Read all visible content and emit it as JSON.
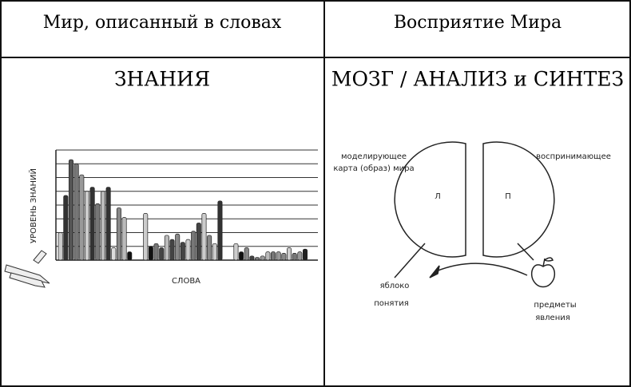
{
  "header": {
    "left": "Мир, описанный в словах",
    "right": "Восприятие Мира"
  },
  "left": {
    "title": "ЗНАНИЯ",
    "chart_data": {
      "type": "bar",
      "ylabel": "УРОВЕНЬ ЗНАНИЙ",
      "xlabel": "СЛОВА",
      "ylim": [
        0,
        8
      ],
      "grid": true,
      "values": [
        2.0,
        4.7,
        7.3,
        7.0,
        6.2,
        5.0,
        5.3,
        4.1,
        5.0,
        5.3,
        0.9,
        3.8,
        3.1,
        0.6,
        null,
        null,
        3.4,
        1.0,
        1.2,
        0.9,
        1.8,
        1.5,
        1.9,
        1.3,
        1.5,
        2.1,
        2.7,
        3.4,
        1.8,
        1.2,
        4.3,
        null,
        null,
        1.2,
        0.6,
        0.9,
        0.3,
        0.2,
        0.3,
        0.6,
        0.6,
        0.6,
        0.5,
        0.9,
        0.5,
        0.6,
        0.8
      ],
      "colors": [
        "#ccc",
        "#333",
        "#555",
        "#777",
        "#999",
        "#ccc",
        "#333",
        "#777",
        "#bbb",
        "#333",
        "#ddd",
        "#888",
        "#bbb",
        "#111",
        null,
        null,
        "#ccc",
        "#111",
        "#777",
        "#444",
        "#bbb",
        "#444",
        "#888",
        "#444",
        "#ccc",
        "#777",
        "#444",
        "#ccc",
        "#888",
        "#ccc",
        "#333",
        null,
        null,
        "#ccc",
        "#111",
        "#888",
        "#444",
        "#777",
        "#999",
        "#bbb",
        "#777",
        "#999",
        "#888",
        "#ccc",
        "#777",
        "#999",
        "#222"
      ]
    }
  },
  "right": {
    "title": "МОЗГ / АНАЛИЗ и СИНТЕЗ",
    "left_label": [
      "моделирующее",
      "карта (образ) мира"
    ],
    "right_label": "воспринимающее",
    "left_letter": "Л",
    "right_letter": "П",
    "apple": "яблоко",
    "concepts": "понятия",
    "objects": [
      "предметы",
      "явления"
    ]
  }
}
